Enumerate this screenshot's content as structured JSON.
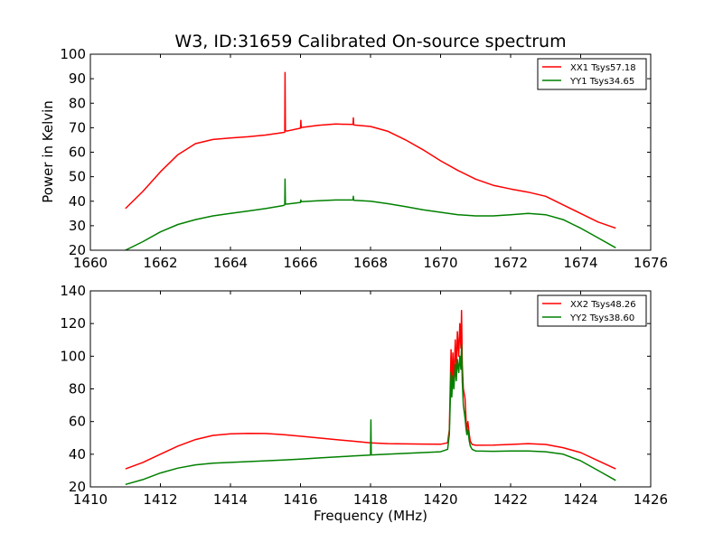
{
  "figure": {
    "title": "W3, ID:31659 Calibrated On-source spectrum",
    "ylabel": "Power in Kelvin",
    "xlabel": "Frequency (MHz)"
  },
  "chart_data": [
    {
      "type": "line",
      "title": "W3, ID:31659 Calibrated On-source spectrum",
      "ylabel": "Power in Kelvin",
      "xlabel": "",
      "xlim": [
        1660,
        1676
      ],
      "ylim": [
        20,
        100
      ],
      "xticks": [
        1660,
        1662,
        1664,
        1666,
        1668,
        1670,
        1672,
        1674,
        1676
      ],
      "yticks": [
        20,
        30,
        40,
        50,
        60,
        70,
        80,
        90,
        100
      ],
      "legend_position": "top-right",
      "grid": false,
      "series": [
        {
          "name": "XX1 Tsys57.18",
          "color": "#ff0000",
          "x": [
            1661.0,
            1661.5,
            1662.0,
            1662.5,
            1663.0,
            1663.5,
            1664.0,
            1664.5,
            1665.0,
            1665.5,
            1665.55,
            1665.56,
            1665.57,
            1665.6,
            1666.0,
            1666.01,
            1666.02,
            1666.03,
            1666.5,
            1667.0,
            1667.5,
            1667.51,
            1667.52,
            1667.53,
            1668.0,
            1668.5,
            1669.0,
            1669.5,
            1670.0,
            1670.5,
            1671.0,
            1671.5,
            1672.0,
            1672.5,
            1673.0,
            1673.5,
            1674.0,
            1674.5,
            1675.0
          ],
          "y": [
            37,
            44,
            52,
            59,
            63.5,
            65.2,
            65.8,
            66.3,
            67,
            68,
            68.2,
            92.5,
            69,
            68.6,
            69.8,
            73,
            70,
            70.1,
            71,
            71.5,
            71.3,
            74,
            71.2,
            71.1,
            70.5,
            68.5,
            65,
            61,
            56.5,
            52.5,
            49,
            46.5,
            45,
            43.7,
            42,
            38.5,
            35,
            31.5,
            29
          ]
        },
        {
          "name": "YY1 Tsys34.65",
          "color": "#008000",
          "x": [
            1661.0,
            1661.5,
            1662.0,
            1662.5,
            1663.0,
            1663.5,
            1664.0,
            1664.5,
            1665.0,
            1665.5,
            1665.55,
            1665.56,
            1665.57,
            1665.6,
            1666.0,
            1666.01,
            1666.02,
            1666.03,
            1666.5,
            1667.0,
            1667.5,
            1667.51,
            1667.52,
            1667.53,
            1668.0,
            1668.5,
            1669.0,
            1669.5,
            1670.0,
            1670.5,
            1671.0,
            1671.5,
            1672.0,
            1672.5,
            1673.0,
            1673.5,
            1674.0,
            1674.5,
            1675.0
          ],
          "y": [
            20,
            23.5,
            27.5,
            30.5,
            32.5,
            34,
            35,
            36,
            37,
            38.2,
            38.5,
            49,
            39,
            38.8,
            39.5,
            40.5,
            39.8,
            39.8,
            40.2,
            40.5,
            40.5,
            42,
            40.4,
            40.4,
            40,
            39,
            37.8,
            36.5,
            35.5,
            34.5,
            34,
            34,
            34.5,
            35,
            34.5,
            32.5,
            29,
            25,
            21
          ]
        }
      ]
    },
    {
      "type": "line",
      "title": "",
      "ylabel": "",
      "xlabel": "Frequency (MHz)",
      "xlim": [
        1410,
        1426
      ],
      "ylim": [
        20,
        140
      ],
      "xticks": [
        1410,
        1412,
        1414,
        1416,
        1418,
        1420,
        1422,
        1424,
        1426
      ],
      "yticks": [
        20,
        40,
        60,
        80,
        100,
        120,
        140
      ],
      "legend_position": "top-right",
      "grid": false,
      "series": [
        {
          "name": "XX2 Tsys48.26",
          "color": "#ff0000",
          "x": [
            1411.0,
            1411.5,
            1412.0,
            1412.5,
            1413.0,
            1413.5,
            1414.0,
            1414.5,
            1415.0,
            1415.5,
            1416.0,
            1416.5,
            1417.0,
            1417.5,
            1418.0,
            1418.5,
            1419.0,
            1419.5,
            1420.0,
            1420.2,
            1420.25,
            1420.3,
            1420.32,
            1420.35,
            1420.38,
            1420.42,
            1420.45,
            1420.48,
            1420.52,
            1420.55,
            1420.58,
            1420.6,
            1420.62,
            1420.65,
            1420.7,
            1420.73,
            1420.75,
            1420.78,
            1420.82,
            1420.85,
            1420.9,
            1421.0,
            1421.5,
            1422.0,
            1422.5,
            1423.0,
            1423.5,
            1424.0,
            1424.5,
            1425.0
          ],
          "y": [
            31,
            35,
            40,
            45,
            49,
            51.5,
            52.5,
            52.8,
            52.7,
            52,
            51,
            50,
            49,
            48,
            47,
            46.5,
            46.3,
            46.2,
            46.1,
            47,
            55,
            104,
            80,
            102,
            85,
            110,
            90,
            115,
            100,
            120,
            105,
            128,
            95,
            80,
            74,
            60,
            55,
            60,
            52,
            48,
            46,
            45.5,
            45.6,
            46,
            46.5,
            46,
            44,
            41,
            36,
            31
          ]
        },
        {
          "name": "YY2 Tsys38.60",
          "color": "#008000",
          "x": [
            1411.0,
            1411.5,
            1412.0,
            1412.5,
            1413.0,
            1413.5,
            1414.0,
            1414.5,
            1415.0,
            1415.5,
            1416.0,
            1416.5,
            1417.0,
            1417.5,
            1418.0,
            1418.01,
            1418.02,
            1418.03,
            1418.5,
            1419.0,
            1419.5,
            1420.0,
            1420.2,
            1420.25,
            1420.3,
            1420.32,
            1420.35,
            1420.38,
            1420.42,
            1420.45,
            1420.48,
            1420.52,
            1420.55,
            1420.58,
            1420.6,
            1420.62,
            1420.65,
            1420.7,
            1420.73,
            1420.75,
            1420.78,
            1420.82,
            1420.85,
            1420.9,
            1421.0,
            1421.5,
            1422.0,
            1422.5,
            1423.0,
            1423.5,
            1424.0,
            1424.5,
            1425.0
          ],
          "y": [
            21.5,
            24.5,
            28.5,
            31.5,
            33.5,
            34.5,
            35,
            35.5,
            36,
            36.5,
            37,
            37.7,
            38.3,
            38.9,
            39.5,
            61,
            40,
            39.6,
            40,
            40.5,
            41,
            41.5,
            43,
            52,
            90,
            75,
            88,
            80,
            95,
            85,
            98,
            90,
            100,
            92,
            107,
            85,
            70,
            62,
            55,
            52,
            55,
            48,
            45,
            43,
            42,
            41.8,
            42,
            42,
            41.5,
            40,
            36,
            30,
            24
          ]
        }
      ]
    }
  ]
}
